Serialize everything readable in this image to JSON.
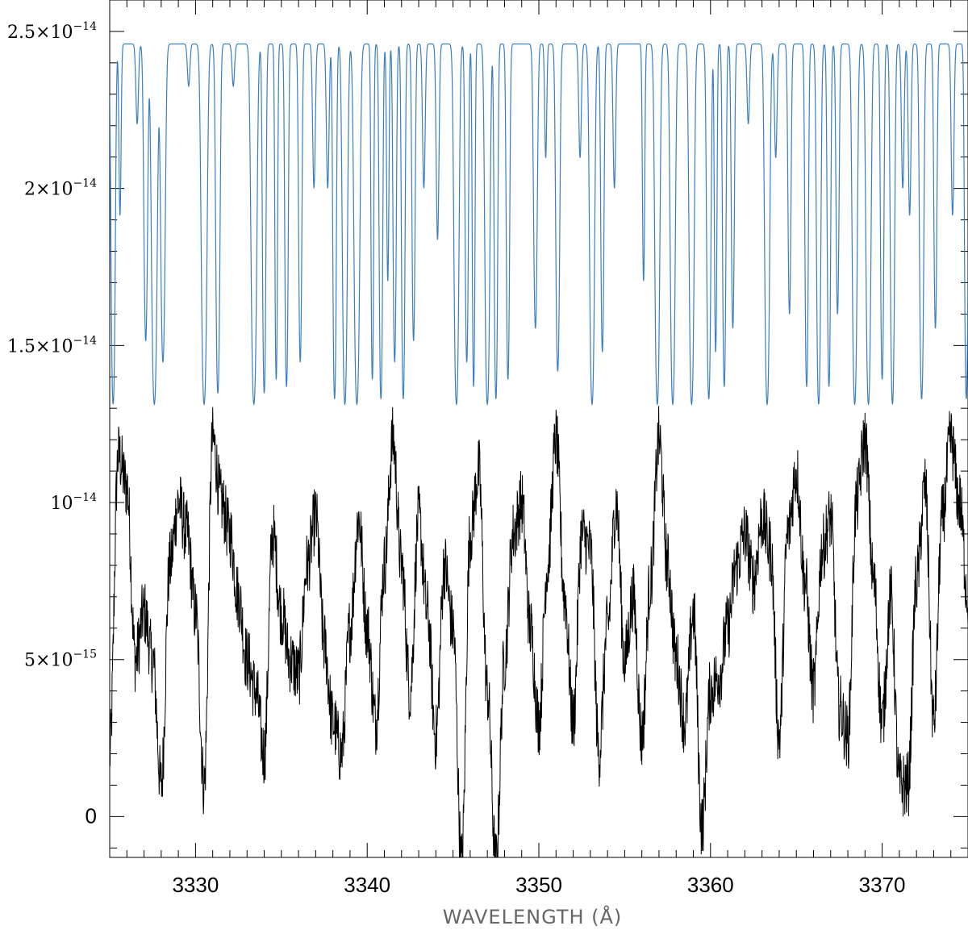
{
  "chart_data": {
    "type": "line",
    "title": "",
    "xlabel": "WAVELENGTH (Å)",
    "ylabel": "",
    "xlim": [
      3325,
      3375
    ],
    "ylim": [
      -1.3e-15,
      2.6e-14
    ],
    "x_ticks": [
      3330,
      3340,
      3350,
      3360,
      3370
    ],
    "x_tick_labels": [
      "3330",
      "3340",
      "3350",
      "3360",
      "3370"
    ],
    "y_ticks": [
      0,
      5e-15,
      1e-14,
      1.5e-14,
      2e-14,
      2.5e-14
    ],
    "y_tick_labels": [
      {
        "mantissa": "0",
        "exponent": ""
      },
      {
        "mantissa": "5×10",
        "exponent": "−15"
      },
      {
        "mantissa": "10",
        "exponent": "−14"
      },
      {
        "mantissa": "1.5×10",
        "exponent": "−14"
      },
      {
        "mantissa": "2×10",
        "exponent": "−14"
      },
      {
        "mantissa": "2.5×10",
        "exponent": "−14"
      }
    ],
    "grid": false,
    "legend": "none",
    "series": [
      {
        "color": "#3a7fc0",
        "style": "smooth model spectrum with saturated absorption lines",
        "continuum": 2.46e-14,
        "floor": 1.17e-14,
        "absorption_lines": [
          [
            3325.2,
            1.0,
            0.12
          ],
          [
            3325.6,
            0.25,
            0.08
          ],
          [
            3326.6,
            0.1,
            0.1
          ],
          [
            3327.1,
            0.6,
            0.12
          ],
          [
            3327.6,
            1.0,
            0.16
          ],
          [
            3328.1,
            0.7,
            0.14
          ],
          [
            3329.6,
            0.05,
            0.1
          ],
          [
            3330.5,
            1.0,
            0.16
          ],
          [
            3331.3,
            0.9,
            0.12
          ],
          [
            3332.2,
            0.05,
            0.1
          ],
          [
            3333.4,
            1.0,
            0.16
          ],
          [
            3334.0,
            0.9,
            0.1
          ],
          [
            3334.7,
            0.8,
            0.08
          ],
          [
            3335.3,
            0.85,
            0.1
          ],
          [
            3336.1,
            0.7,
            0.1
          ],
          [
            3336.9,
            0.2,
            0.1
          ],
          [
            3337.7,
            0.2,
            0.1
          ],
          [
            3338.1,
            0.95,
            0.1
          ],
          [
            3338.7,
            1.0,
            0.14
          ],
          [
            3339.4,
            1.0,
            0.16
          ],
          [
            3340.3,
            0.8,
            0.08
          ],
          [
            3340.8,
            0.95,
            0.1
          ],
          [
            3341.2,
            0.4,
            0.08
          ],
          [
            3341.6,
            0.7,
            0.1
          ],
          [
            3342.1,
            0.95,
            0.1
          ],
          [
            3342.7,
            0.6,
            0.1
          ],
          [
            3343.3,
            0.2,
            0.1
          ],
          [
            3344.1,
            0.3,
            0.1
          ],
          [
            3345.2,
            1.0,
            0.14
          ],
          [
            3345.8,
            0.7,
            0.1
          ],
          [
            3346.2,
            0.85,
            0.08
          ],
          [
            3347.0,
            1.0,
            0.14
          ],
          [
            3347.5,
            0.95,
            0.1
          ],
          [
            3348.2,
            0.8,
            0.1
          ],
          [
            3349.8,
            0.55,
            0.12
          ],
          [
            3350.4,
            0.15,
            0.08
          ],
          [
            3351.1,
            0.75,
            0.12
          ],
          [
            3352.4,
            0.15,
            0.1
          ],
          [
            3353.1,
            1.0,
            0.14
          ],
          [
            3353.7,
            0.65,
            0.1
          ],
          [
            3354.4,
            0.2,
            0.1
          ],
          [
            3356.1,
            0.4,
            0.08
          ],
          [
            3356.9,
            1.0,
            0.14
          ],
          [
            3357.8,
            1.0,
            0.14
          ],
          [
            3358.9,
            1.0,
            0.14
          ],
          [
            3359.9,
            0.95,
            0.12
          ],
          [
            3360.3,
            0.65,
            0.08
          ],
          [
            3360.8,
            0.85,
            0.1
          ],
          [
            3361.3,
            0.55,
            0.1
          ],
          [
            3362.2,
            0.1,
            0.1
          ],
          [
            3363.3,
            1.0,
            0.14
          ],
          [
            3363.8,
            0.15,
            0.1
          ],
          [
            3364.6,
            0.5,
            0.1
          ],
          [
            3365.6,
            0.85,
            0.1
          ],
          [
            3366.3,
            1.0,
            0.12
          ],
          [
            3366.9,
            0.85,
            0.1
          ],
          [
            3367.4,
            0.5,
            0.1
          ],
          [
            3368.4,
            1.0,
            0.14
          ],
          [
            3369.2,
            1.0,
            0.14
          ],
          [
            3370.0,
            0.8,
            0.1
          ],
          [
            3370.6,
            1.0,
            0.12
          ],
          [
            3371.2,
            0.2,
            0.1
          ],
          [
            3371.6,
            0.25,
            0.1
          ],
          [
            3372.3,
            0.95,
            0.12
          ],
          [
            3373.1,
            0.55,
            0.1
          ],
          [
            3374.1,
            0.25,
            0.1
          ],
          [
            3374.9,
            0.95,
            0.1
          ]
        ]
      },
      {
        "color": "#000000",
        "style": "noisy observed spectrum",
        "x": [
          3325.0,
          3325.5,
          3326.0,
          3326.5,
          3327.0,
          3327.5,
          3328.0,
          3328.5,
          3329.0,
          3329.5,
          3330.0,
          3330.5,
          3331.0,
          3331.5,
          3332.0,
          3332.5,
          3333.0,
          3333.5,
          3334.0,
          3334.5,
          3335.0,
          3335.5,
          3336.0,
          3336.5,
          3337.0,
          3337.5,
          3338.0,
          3338.5,
          3339.0,
          3339.5,
          3340.0,
          3340.5,
          3341.0,
          3341.5,
          3342.0,
          3342.5,
          3343.0,
          3343.5,
          3344.0,
          3344.5,
          3345.0,
          3345.5,
          3346.0,
          3346.5,
          3347.0,
          3347.5,
          3348.0,
          3348.5,
          3349.0,
          3349.5,
          3350.0,
          3350.5,
          3351.0,
          3351.5,
          3352.0,
          3352.5,
          3353.0,
          3353.5,
          3354.0,
          3354.5,
          3355.0,
          3355.5,
          3356.0,
          3356.5,
          3357.0,
          3357.5,
          3358.0,
          3358.5,
          3359.0,
          3359.5,
          3360.0,
          3360.5,
          3361.0,
          3361.5,
          3362.0,
          3362.5,
          3363.0,
          3363.5,
          3364.0,
          3364.5,
          3365.0,
          3365.5,
          3366.0,
          3366.5,
          3367.0,
          3367.5,
          3368.0,
          3368.5,
          3369.0,
          3369.5,
          3370.0,
          3370.5,
          3371.0,
          3371.5,
          3372.0,
          3372.5,
          3373.0,
          3373.5,
          3374.0,
          3374.5,
          3375.0
        ],
        "y": [
          2e-15,
          1.15e-14,
          1.05e-14,
          5e-15,
          6.5e-15,
          5e-15,
          1e-15,
          8e-15,
          1e-14,
          9e-15,
          6.5e-15,
          1e-15,
          1.2e-14,
          1e-14,
          9e-15,
          7e-15,
          5e-15,
          4e-15,
          2e-15,
          9e-15,
          6.5e-15,
          5e-15,
          4.5e-15,
          8e-15,
          9.5e-15,
          5.5e-15,
          3e-15,
          2e-15,
          6e-15,
          9.5e-15,
          6e-15,
          3e-15,
          8e-15,
          1.2e-14,
          8e-15,
          4e-15,
          9.5e-15,
          6.5e-15,
          2.5e-15,
          8e-15,
          6e-15,
          -1.5e-15,
          9e-15,
          1.1e-14,
          4e-15,
          -1.5e-15,
          5e-15,
          9e-15,
          1e-14,
          6e-15,
          3e-15,
          8e-15,
          1.2e-14,
          7e-15,
          3e-15,
          9e-15,
          8.5e-15,
          2e-15,
          6e-15,
          1e-14,
          5e-15,
          7e-15,
          2.5e-15,
          7.5e-15,
          1.2e-14,
          8e-15,
          5e-15,
          3e-15,
          6.5e-15,
          -3e-16,
          4e-15,
          4.5e-15,
          6e-15,
          8e-15,
          9e-15,
          7.5e-15,
          9.5e-15,
          8.5e-15,
          2.5e-15,
          9e-15,
          1.1e-14,
          7.5e-15,
          4e-15,
          8.5e-15,
          9.5e-15,
          3.5e-15,
          2.5e-15,
          1e-14,
          1.2e-14,
          7.5e-15,
          3e-15,
          7e-15,
          1e-15,
          1e-15,
          7.5e-15,
          1.05e-14,
          3e-15,
          9.5e-15,
          1.2e-14,
          1e-14,
          7e-15
        ]
      }
    ]
  }
}
